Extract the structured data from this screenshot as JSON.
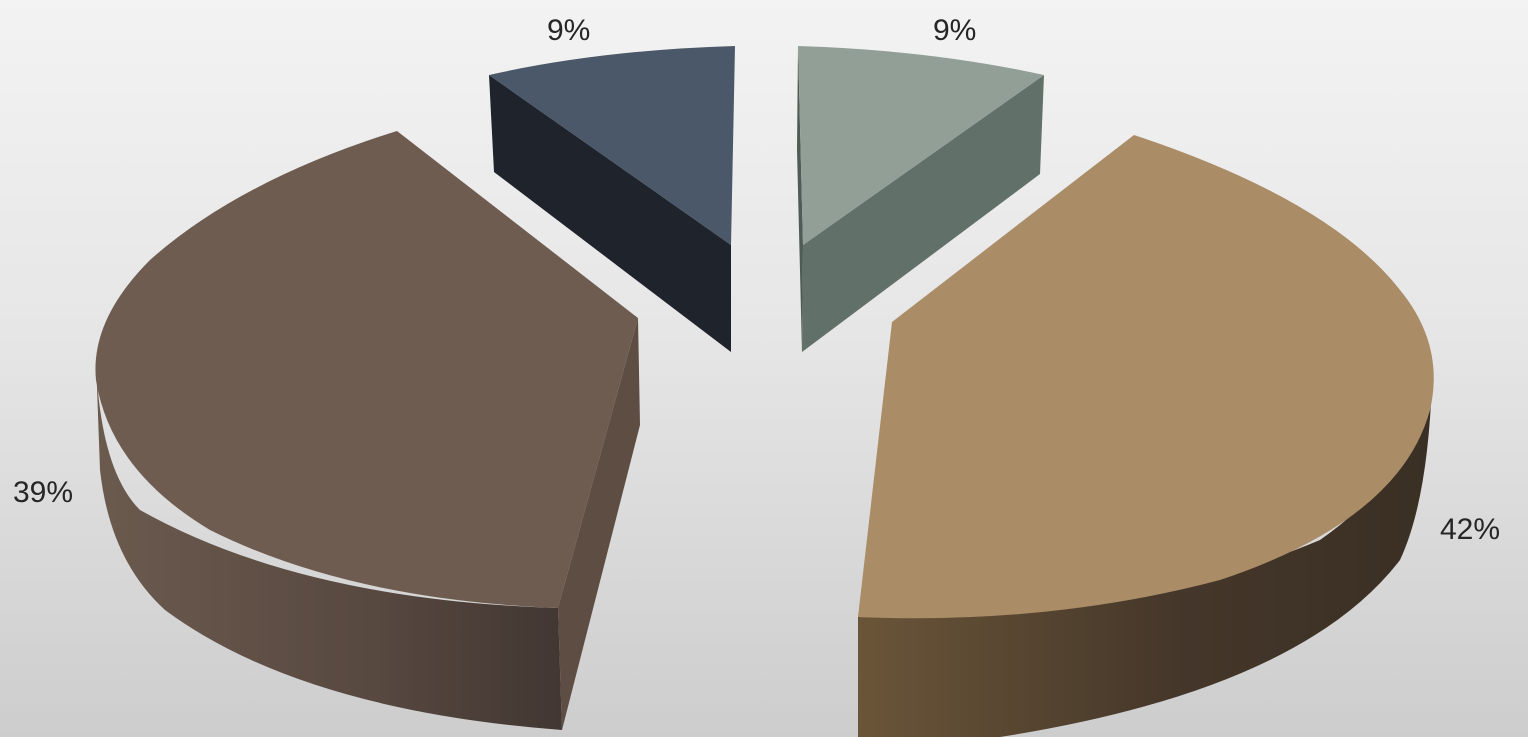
{
  "chart_data": {
    "type": "pie",
    "style": "3d-exploded",
    "slices": [
      {
        "value": 42,
        "label": "42%",
        "color": "#aa8c67"
      },
      {
        "value": 39,
        "label": "39%",
        "color": "#6f5c50"
      },
      {
        "value": 9,
        "label": "9%",
        "color": "#4a5869"
      },
      {
        "value": 9,
        "label": "9%",
        "color": "#929f96"
      }
    ],
    "legend": "none",
    "background": "#e6e6e6"
  }
}
